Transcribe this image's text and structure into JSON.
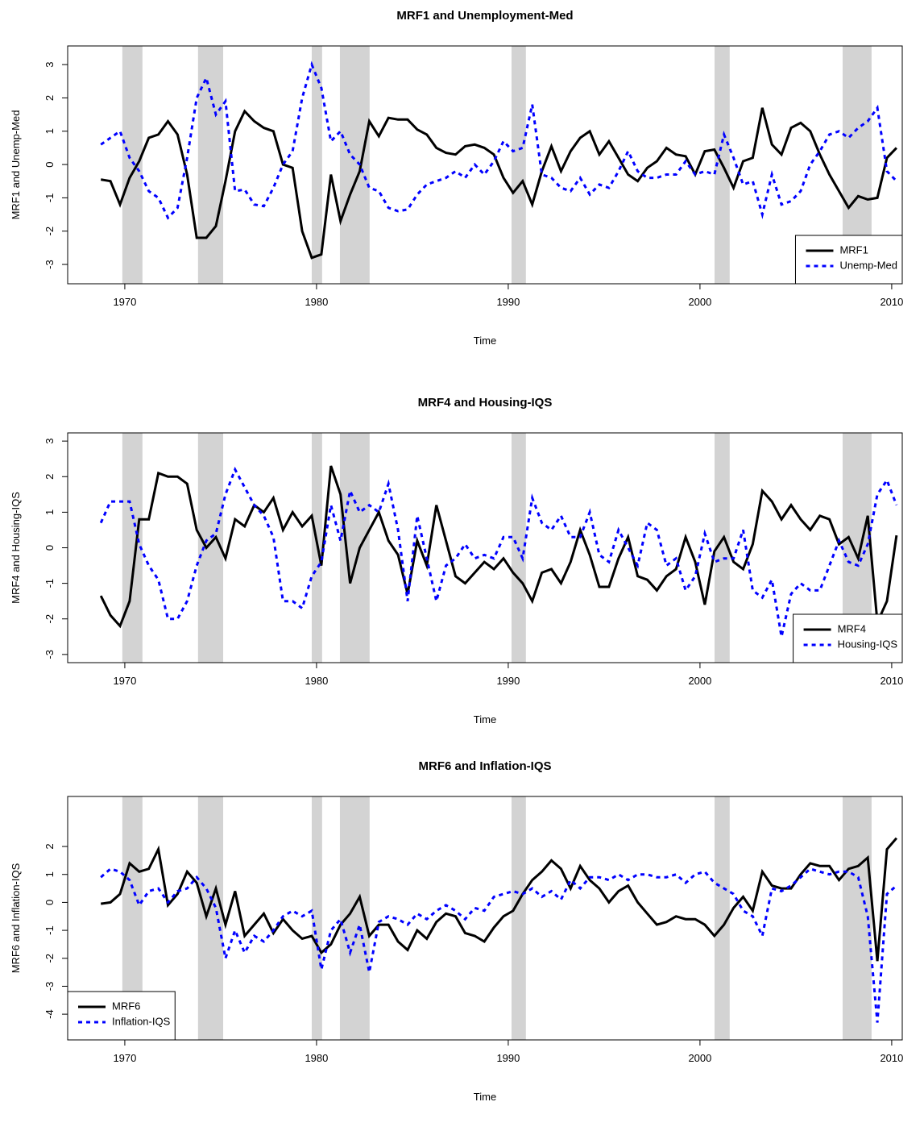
{
  "chart_data": [
    {
      "type": "line",
      "title": "MRF1 and Unemployment-Med",
      "x_label": "Time",
      "y_label": "MRF1 and Unemp-Med",
      "xlim": [
        1967.02,
        2010.55
      ],
      "ylim": [
        -3.58,
        3.56
      ],
      "xticks": [
        1970,
        1980,
        1990,
        2000,
        2010
      ],
      "yticks": [
        -3,
        -2,
        -1,
        0,
        1,
        2,
        3
      ],
      "legend": "bottomright",
      "shade_color": "#d3d3d3",
      "shaded_periods": [
        [
          1969.87,
          1970.92
        ],
        [
          1973.82,
          1975.13
        ],
        [
          1979.75,
          1980.29
        ],
        [
          1981.22,
          1982.77
        ],
        [
          1990.17,
          1990.92
        ],
        [
          2000.76,
          2001.55
        ],
        [
          2007.44,
          2008.95
        ]
      ],
      "x": [
        1968.75,
        1969.25,
        1969.75,
        1970.25,
        1970.75,
        1971.25,
        1971.75,
        1972.25,
        1972.75,
        1973.25,
        1973.75,
        1974.25,
        1974.75,
        1975.25,
        1975.75,
        1976.25,
        1976.75,
        1977.25,
        1977.75,
        1978.25,
        1978.75,
        1979.25,
        1979.75,
        1980.25,
        1980.75,
        1981.25,
        1981.75,
        1982.25,
        1982.75,
        1983.25,
        1983.75,
        1984.25,
        1984.75,
        1985.25,
        1985.75,
        1986.25,
        1986.75,
        1987.25,
        1987.75,
        1988.25,
        1988.75,
        1989.25,
        1989.75,
        1990.25,
        1990.75,
        1991.25,
        1991.75,
        1992.25,
        1992.75,
        1993.25,
        1993.75,
        1994.25,
        1994.75,
        1995.25,
        1995.75,
        1996.25,
        1996.75,
        1997.25,
        1997.75,
        1998.25,
        1998.75,
        1999.25,
        1999.75,
        2000.25,
        2000.75,
        2001.25,
        2001.75,
        2002.25,
        2002.75,
        2003.25,
        2003.75,
        2004.25,
        2004.75,
        2005.25,
        2005.75,
        2006.25,
        2006.75,
        2007.25,
        2007.75,
        2008.25,
        2008.75,
        2009.25,
        2009.75,
        2010.25
      ],
      "series": [
        {
          "name": "MRF1",
          "color": "#000000",
          "dashed": false,
          "values": [
            -0.45,
            -0.5,
            -1.2,
            -0.4,
            0.1,
            0.8,
            0.9,
            1.3,
            0.9,
            -0.3,
            -2.2,
            -2.2,
            -1.85,
            -0.5,
            1.0,
            1.6,
            1.3,
            1.1,
            1.0,
            0.0,
            -0.1,
            -2.0,
            -2.8,
            -2.7,
            -0.3,
            -1.7,
            -0.9,
            -0.2,
            1.3,
            0.85,
            1.4,
            1.35,
            1.35,
            1.05,
            0.9,
            0.5,
            0.35,
            0.3,
            0.55,
            0.6,
            0.5,
            0.3,
            -0.4,
            -0.85,
            -0.5,
            -1.2,
            -0.2,
            0.55,
            -0.2,
            0.4,
            0.8,
            1.0,
            0.3,
            0.7,
            0.2,
            -0.3,
            -0.5,
            -0.1,
            0.1,
            0.5,
            0.3,
            0.25,
            -0.3,
            0.4,
            0.45,
            -0.1,
            -0.7,
            0.1,
            0.2,
            1.7,
            0.6,
            0.3,
            1.1,
            1.25,
            1.0,
            0.3,
            -0.3,
            -0.8,
            -1.3,
            -0.95,
            -1.05,
            -1.0,
            0.2,
            0.5
          ]
        },
        {
          "name": "Unemp-Med",
          "color": "#0000ff",
          "dashed": true,
          "values": [
            0.6,
            0.8,
            1.0,
            0.2,
            -0.2,
            -0.8,
            -1.0,
            -1.6,
            -1.3,
            0.2,
            2.0,
            2.6,
            1.5,
            1.9,
            -0.8,
            -0.75,
            -1.2,
            -1.25,
            -0.7,
            0.0,
            0.4,
            2.0,
            3.0,
            2.3,
            0.7,
            1.0,
            0.3,
            0.0,
            -0.7,
            -0.8,
            -1.3,
            -1.4,
            -1.35,
            -0.9,
            -0.6,
            -0.5,
            -0.4,
            -0.2,
            -0.4,
            0.0,
            -0.3,
            0.1,
            0.7,
            0.4,
            0.5,
            1.8,
            -0.3,
            -0.4,
            -0.7,
            -0.8,
            -0.4,
            -0.9,
            -0.6,
            -0.7,
            -0.2,
            0.4,
            -0.2,
            -0.4,
            -0.4,
            -0.3,
            -0.3,
            0.1,
            -0.3,
            -0.2,
            -0.3,
            0.9,
            0.2,
            -0.6,
            -0.5,
            -1.5,
            -0.3,
            -1.2,
            -1.1,
            -0.8,
            0.0,
            0.4,
            0.9,
            1.0,
            0.8,
            1.1,
            1.3,
            1.7,
            -0.2,
            -0.5
          ]
        }
      ]
    },
    {
      "type": "line",
      "title": "MRF4 and Housing-IQS",
      "x_label": "Time",
      "y_label": "MRF4 and Housing-IQS",
      "xlim": [
        1967.02,
        2010.55
      ],
      "ylim": [
        -3.23,
        3.23
      ],
      "xticks": [
        1970,
        1980,
        1990,
        2000,
        2010
      ],
      "yticks": [
        -3,
        -2,
        -1,
        0,
        1,
        2,
        3
      ],
      "legend": "bottomright",
      "shade_color": "#d3d3d3",
      "shaded_periods": [
        [
          1969.87,
          1970.92
        ],
        [
          1973.82,
          1975.13
        ],
        [
          1979.75,
          1980.29
        ],
        [
          1981.22,
          1982.77
        ],
        [
          1990.17,
          1990.92
        ],
        [
          2000.76,
          2001.55
        ],
        [
          2007.44,
          2008.95
        ]
      ],
      "x": [
        1968.75,
        1969.25,
        1969.75,
        1970.25,
        1970.75,
        1971.25,
        1971.75,
        1972.25,
        1972.75,
        1973.25,
        1973.75,
        1974.25,
        1974.75,
        1975.25,
        1975.75,
        1976.25,
        1976.75,
        1977.25,
        1977.75,
        1978.25,
        1978.75,
        1979.25,
        1979.75,
        1980.25,
        1980.75,
        1981.25,
        1981.75,
        1982.25,
        1982.75,
        1983.25,
        1983.75,
        1984.25,
        1984.75,
        1985.25,
        1985.75,
        1986.25,
        1986.75,
        1987.25,
        1987.75,
        1988.25,
        1988.75,
        1989.25,
        1989.75,
        1990.25,
        1990.75,
        1991.25,
        1991.75,
        1992.25,
        1992.75,
        1993.25,
        1993.75,
        1994.25,
        1994.75,
        1995.25,
        1995.75,
        1996.25,
        1996.75,
        1997.25,
        1997.75,
        1998.25,
        1998.75,
        1999.25,
        1999.75,
        2000.25,
        2000.75,
        2001.25,
        2001.75,
        2002.25,
        2002.75,
        2003.25,
        2003.75,
        2004.25,
        2004.75,
        2005.25,
        2005.75,
        2006.25,
        2006.75,
        2007.25,
        2007.75,
        2008.25,
        2008.75,
        2009.25,
        2009.75,
        2010.25
      ],
      "series": [
        {
          "name": "MRF4",
          "color": "#000000",
          "dashed": false,
          "values": [
            -1.35,
            -1.9,
            -2.2,
            -1.5,
            0.8,
            0.8,
            2.1,
            2.0,
            2.0,
            1.8,
            0.5,
            0.0,
            0.3,
            -0.3,
            0.8,
            0.6,
            1.2,
            1.0,
            1.4,
            0.5,
            1.0,
            0.6,
            0.9,
            -0.5,
            2.3,
            1.5,
            -1.0,
            0.0,
            0.5,
            1.0,
            0.2,
            -0.2,
            -1.3,
            0.2,
            -0.5,
            1.2,
            0.2,
            -0.8,
            -1.0,
            -0.7,
            -0.4,
            -0.6,
            -0.3,
            -0.7,
            -1.0,
            -1.5,
            -0.7,
            -0.6,
            -1.0,
            -0.4,
            0.5,
            -0.2,
            -1.1,
            -1.1,
            -0.3,
            0.3,
            -0.8,
            -0.9,
            -1.2,
            -0.8,
            -0.6,
            0.3,
            -0.4,
            -1.6,
            -0.1,
            0.3,
            -0.4,
            -0.6,
            0.1,
            1.6,
            1.3,
            0.8,
            1.2,
            0.8,
            0.5,
            0.9,
            0.8,
            0.1,
            0.3,
            -0.3,
            0.9,
            -2.1,
            -1.5,
            0.35
          ]
        },
        {
          "name": "Housing-IQS",
          "color": "#0000ff",
          "dashed": true,
          "values": [
            0.7,
            1.3,
            1.3,
            1.3,
            0.1,
            -0.5,
            -0.9,
            -2.0,
            -2.0,
            -1.5,
            -0.5,
            0.2,
            0.4,
            1.5,
            2.2,
            1.7,
            1.2,
            0.9,
            0.3,
            -1.5,
            -1.5,
            -1.7,
            -0.8,
            -0.4,
            1.2,
            0.2,
            1.6,
            1.0,
            1.2,
            1.0,
            1.8,
            0.5,
            -1.5,
            0.9,
            -0.3,
            -1.5,
            -0.5,
            -0.3,
            0.1,
            -0.3,
            -0.2,
            -0.3,
            0.3,
            0.3,
            -0.3,
            1.4,
            0.7,
            0.5,
            0.9,
            0.3,
            0.3,
            1.0,
            -0.2,
            -0.4,
            0.5,
            0.0,
            -0.5,
            0.7,
            0.5,
            -0.5,
            -0.3,
            -1.2,
            -0.8,
            0.4,
            -0.4,
            -0.3,
            -0.3,
            0.5,
            -1.2,
            -1.4,
            -0.9,
            -2.5,
            -1.3,
            -1.0,
            -1.2,
            -1.2,
            -0.5,
            0.2,
            -0.4,
            -0.5,
            0.1,
            1.5,
            1.9,
            1.2
          ]
        }
      ]
    },
    {
      "type": "line",
      "title": "MRF6 and Inflation-IQS",
      "x_label": "Time",
      "y_label": "MRF6 and Inflation-IQS",
      "xlim": [
        1967.02,
        2010.55
      ],
      "ylim": [
        -4.92,
        3.79
      ],
      "xticks": [
        1970,
        1980,
        1990,
        2000,
        2010
      ],
      "yticks": [
        -4,
        -3,
        -2,
        -1,
        0,
        1,
        2
      ],
      "legend": "bottomleft",
      "shade_color": "#d3d3d3",
      "shaded_periods": [
        [
          1969.87,
          1970.92
        ],
        [
          1973.82,
          1975.13
        ],
        [
          1979.75,
          1980.29
        ],
        [
          1981.22,
          1982.77
        ],
        [
          1990.17,
          1990.92
        ],
        [
          2000.76,
          2001.55
        ],
        [
          2007.44,
          2008.95
        ]
      ],
      "x": [
        1968.75,
        1969.25,
        1969.75,
        1970.25,
        1970.75,
        1971.25,
        1971.75,
        1972.25,
        1972.75,
        1973.25,
        1973.75,
        1974.25,
        1974.75,
        1975.25,
        1975.75,
        1976.25,
        1976.75,
        1977.25,
        1977.75,
        1978.25,
        1978.75,
        1979.25,
        1979.75,
        1980.25,
        1980.75,
        1981.25,
        1981.75,
        1982.25,
        1982.75,
        1983.25,
        1983.75,
        1984.25,
        1984.75,
        1985.25,
        1985.75,
        1986.25,
        1986.75,
        1987.25,
        1987.75,
        1988.25,
        1988.75,
        1989.25,
        1989.75,
        1990.25,
        1990.75,
        1991.25,
        1991.75,
        1992.25,
        1992.75,
        1993.25,
        1993.75,
        1994.25,
        1994.75,
        1995.25,
        1995.75,
        1996.25,
        1996.75,
        1997.25,
        1997.75,
        1998.25,
        1998.75,
        1999.25,
        1999.75,
        2000.25,
        2000.75,
        2001.25,
        2001.75,
        2002.25,
        2002.75,
        2003.25,
        2003.75,
        2004.25,
        2004.75,
        2005.25,
        2005.75,
        2006.25,
        2006.75,
        2007.25,
        2007.75,
        2008.25,
        2008.75,
        2009.25,
        2009.75,
        2010.25
      ],
      "series": [
        {
          "name": "MRF6",
          "color": "#000000",
          "dashed": false,
          "values": [
            -0.05,
            0.0,
            0.3,
            1.4,
            1.1,
            1.2,
            1.9,
            -0.1,
            0.3,
            1.1,
            0.7,
            -0.5,
            0.5,
            -0.8,
            0.4,
            -1.2,
            -0.8,
            -0.4,
            -1.1,
            -0.6,
            -1.0,
            -1.3,
            -1.2,
            -1.8,
            -1.5,
            -0.8,
            -0.4,
            0.2,
            -1.2,
            -0.8,
            -0.8,
            -1.4,
            -1.7,
            -1.0,
            -1.3,
            -0.7,
            -0.4,
            -0.5,
            -1.1,
            -1.2,
            -1.4,
            -0.9,
            -0.5,
            -0.3,
            0.3,
            0.8,
            1.1,
            1.5,
            1.2,
            0.5,
            1.3,
            0.8,
            0.5,
            0.0,
            0.4,
            0.6,
            0.0,
            -0.4,
            -0.8,
            -0.7,
            -0.5,
            -0.6,
            -0.6,
            -0.8,
            -1.2,
            -0.8,
            -0.2,
            0.2,
            -0.3,
            1.1,
            0.6,
            0.5,
            0.5,
            1.0,
            1.4,
            1.3,
            1.3,
            0.8,
            1.2,
            1.3,
            1.6,
            -2.1,
            1.9,
            2.3
          ]
        },
        {
          "name": "Inflation-IQS",
          "color": "#0000ff",
          "dashed": true,
          "values": [
            0.9,
            1.2,
            1.1,
            0.8,
            -0.1,
            0.4,
            0.5,
            0.0,
            0.4,
            0.5,
            0.9,
            0.5,
            -0.2,
            -2.0,
            -1.0,
            -1.8,
            -1.2,
            -1.4,
            -1.0,
            -0.5,
            -0.3,
            -0.5,
            -0.3,
            -2.4,
            -1.0,
            -0.6,
            -1.8,
            -0.8,
            -2.5,
            -0.7,
            -0.5,
            -0.6,
            -0.8,
            -0.4,
            -0.6,
            -0.3,
            -0.1,
            -0.3,
            -0.6,
            -0.2,
            -0.3,
            0.2,
            0.3,
            0.4,
            0.3,
            0.5,
            0.2,
            0.4,
            0.1,
            0.8,
            0.5,
            0.9,
            0.9,
            0.8,
            1.0,
            0.8,
            1.0,
            1.0,
            0.9,
            0.9,
            1.0,
            0.7,
            1.0,
            1.1,
            0.7,
            0.5,
            0.3,
            -0.3,
            -0.5,
            -1.2,
            0.5,
            0.4,
            0.6,
            0.9,
            1.2,
            1.1,
            1.0,
            1.1,
            1.1,
            0.9,
            -0.5,
            -4.3,
            0.3,
            0.6
          ]
        }
      ]
    }
  ]
}
